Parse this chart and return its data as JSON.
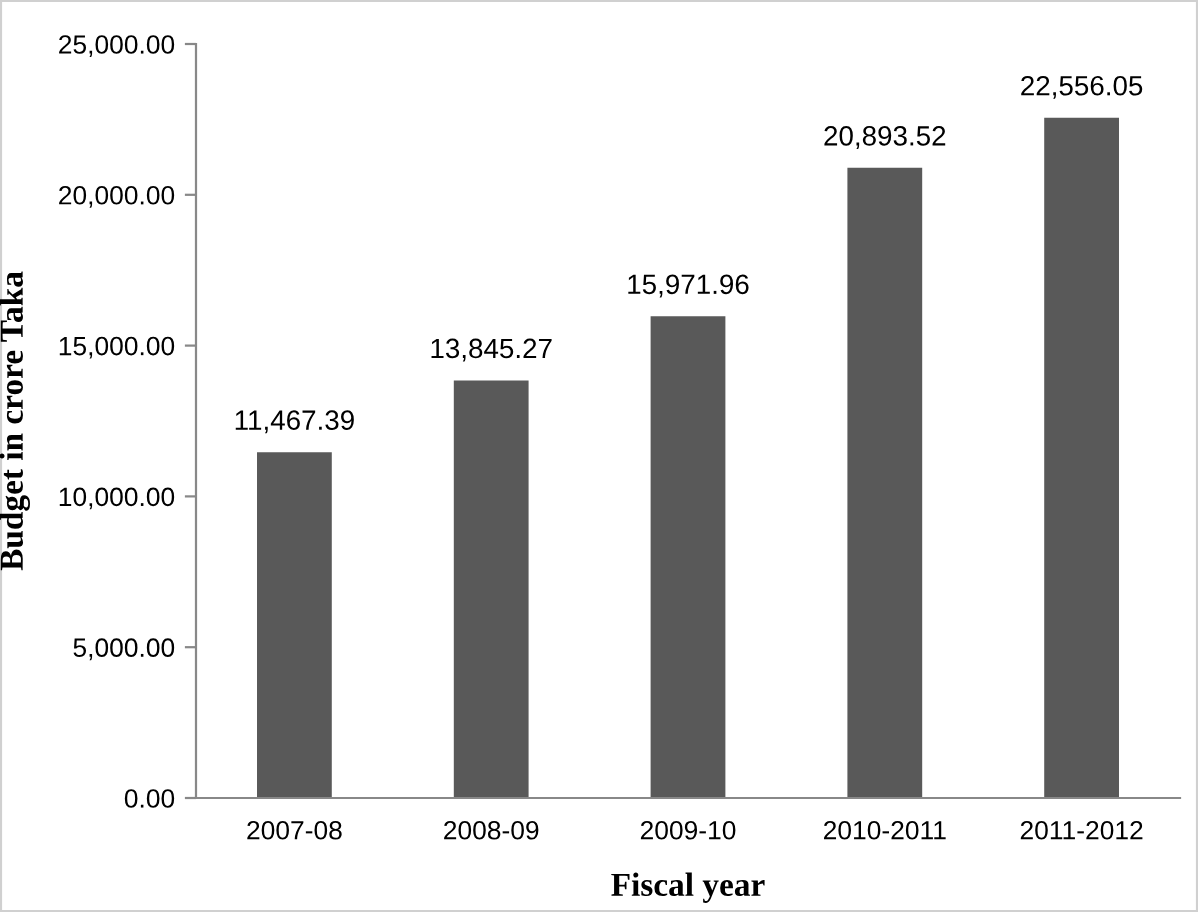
{
  "chart_data": {
    "type": "bar",
    "xlabel": "Fiscal year",
    "ylabel": "Budget in crore Taka",
    "categories": [
      "2007-08",
      "2008-09",
      "2009-10",
      "2010-2011",
      "2011-2012"
    ],
    "values": [
      11467.39,
      13845.27,
      15971.96,
      20893.52,
      22556.05
    ],
    "value_labels": [
      "11,467.39",
      "13,845.27",
      "15,971.96",
      "20,893.52",
      "22,556.05"
    ],
    "color": "#595959",
    "ylim": [
      0,
      25000
    ],
    "yticks": [
      {
        "value": 0,
        "label": "0.00"
      },
      {
        "value": 5000,
        "label": "5,000.00"
      },
      {
        "value": 10000,
        "label": "10,000.00"
      },
      {
        "value": 15000,
        "label": "15,000.00"
      },
      {
        "value": 20000,
        "label": "20,000.00"
      },
      {
        "value": 25000,
        "label": "25,000.00"
      }
    ],
    "grid": false,
    "legend": false
  }
}
